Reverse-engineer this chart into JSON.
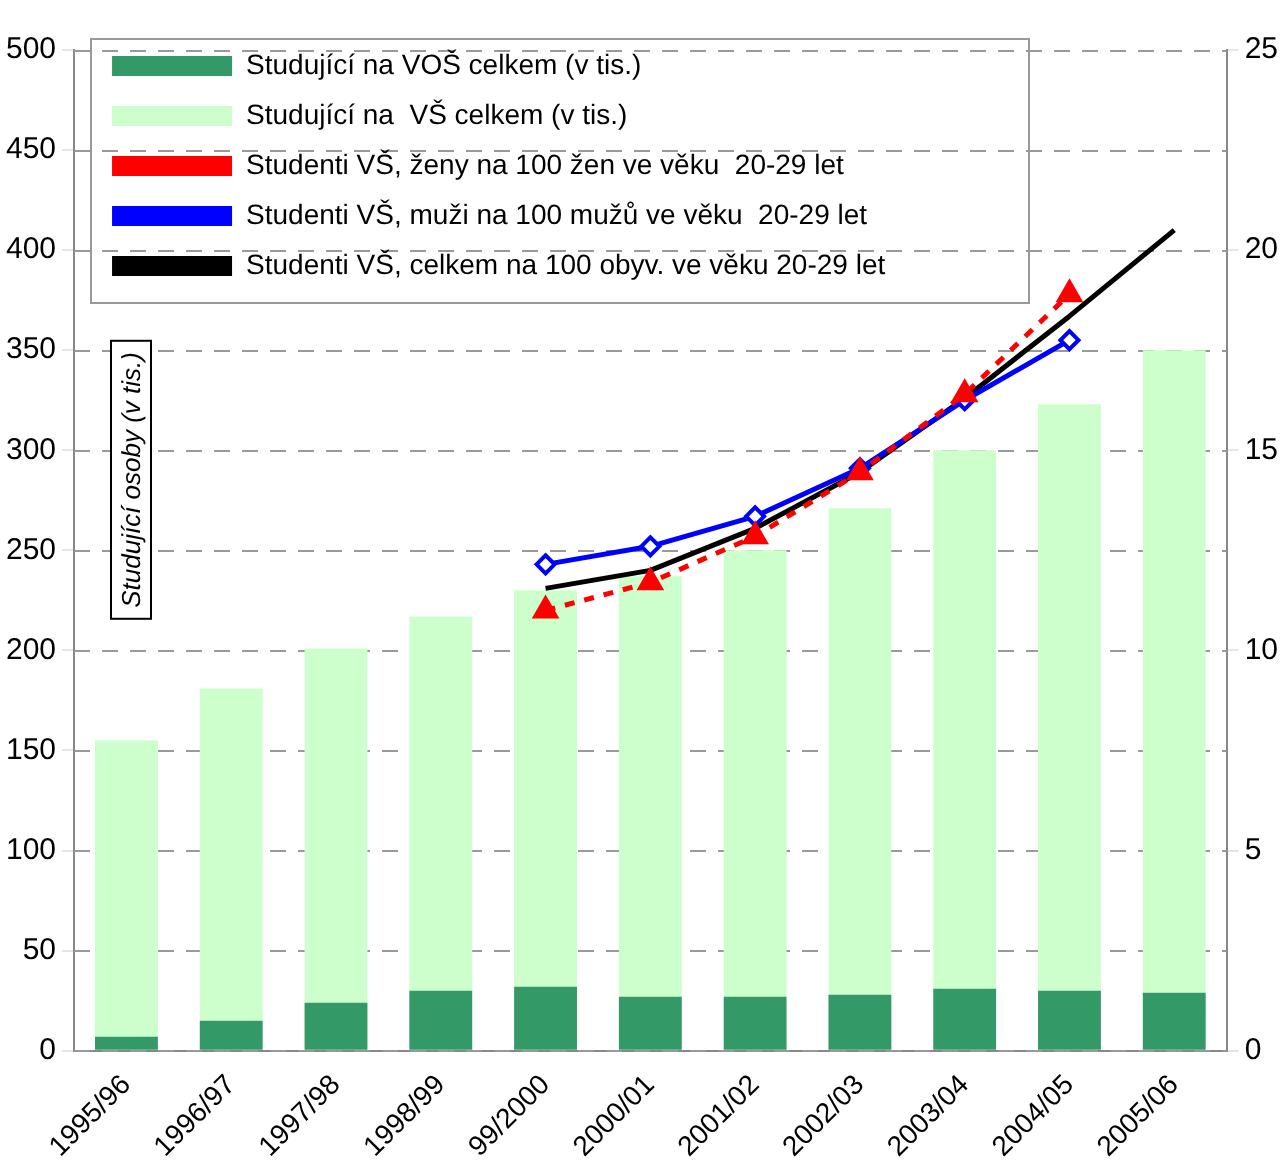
{
  "chart_data": {
    "type": "bar",
    "ylabel": "Studující osoby (v tis.)",
    "categories": [
      "1995/96",
      "1996/97",
      "1997/98",
      "1998/99",
      "99/2000",
      "2000/01",
      "2001/02",
      "2002/03",
      "2003/04",
      "2004/05",
      "2005/06"
    ],
    "series": [
      {
        "name": "Studující na VOŠ celkem (v tis.)",
        "type": "bar",
        "color": "#339966",
        "values": [
          7,
          15,
          24,
          30,
          32,
          27,
          27,
          28,
          31,
          30,
          29
        ]
      },
      {
        "name": "Studující na  VŠ celkem (v tis.)",
        "type": "bar",
        "color": "#ccffcc",
        "values": [
          148,
          166,
          177,
          187,
          198,
          210,
          223,
          243,
          269,
          293,
          321
        ]
      },
      {
        "name": "Studenti VŠ, ženy na 100 žen ve věku  20-29 let",
        "type": "line",
        "axis": "y2",
        "color": "#ff0000",
        "line_style": "dashed",
        "marker": "triangle",
        "values": [
          null,
          null,
          null,
          null,
          11.0,
          11.7,
          12.85,
          14.45,
          16.4,
          18.9,
          null
        ]
      },
      {
        "name": "Studenti VŠ, muži na 100 mužů ve věku  20-29 let",
        "type": "line",
        "axis": "y2",
        "color": "#0000ff",
        "line_style": "solid",
        "marker": "diamond",
        "values": [
          null,
          null,
          null,
          null,
          12.15,
          12.6,
          13.35,
          14.55,
          16.25,
          17.75,
          null
        ]
      },
      {
        "name": "Studenti VŠ, celkem na 100 obyv. ve věku 20-29 let",
        "type": "line",
        "axis": "y2",
        "color": "#000000",
        "line_style": "solid",
        "marker": "none",
        "values": [
          null,
          null,
          null,
          null,
          11.55,
          12.0,
          13.05,
          14.45,
          16.3,
          18.35,
          20.5
        ]
      }
    ],
    "ylim": [
      0,
      500
    ],
    "yticks": [
      0,
      50,
      100,
      150,
      200,
      250,
      300,
      350,
      400,
      450,
      500
    ],
    "y2lim": [
      0,
      25
    ],
    "y2ticks": [
      0,
      5,
      10,
      15,
      20,
      25
    ],
    "stacked": true,
    "grid": "y",
    "legend": "top left"
  }
}
